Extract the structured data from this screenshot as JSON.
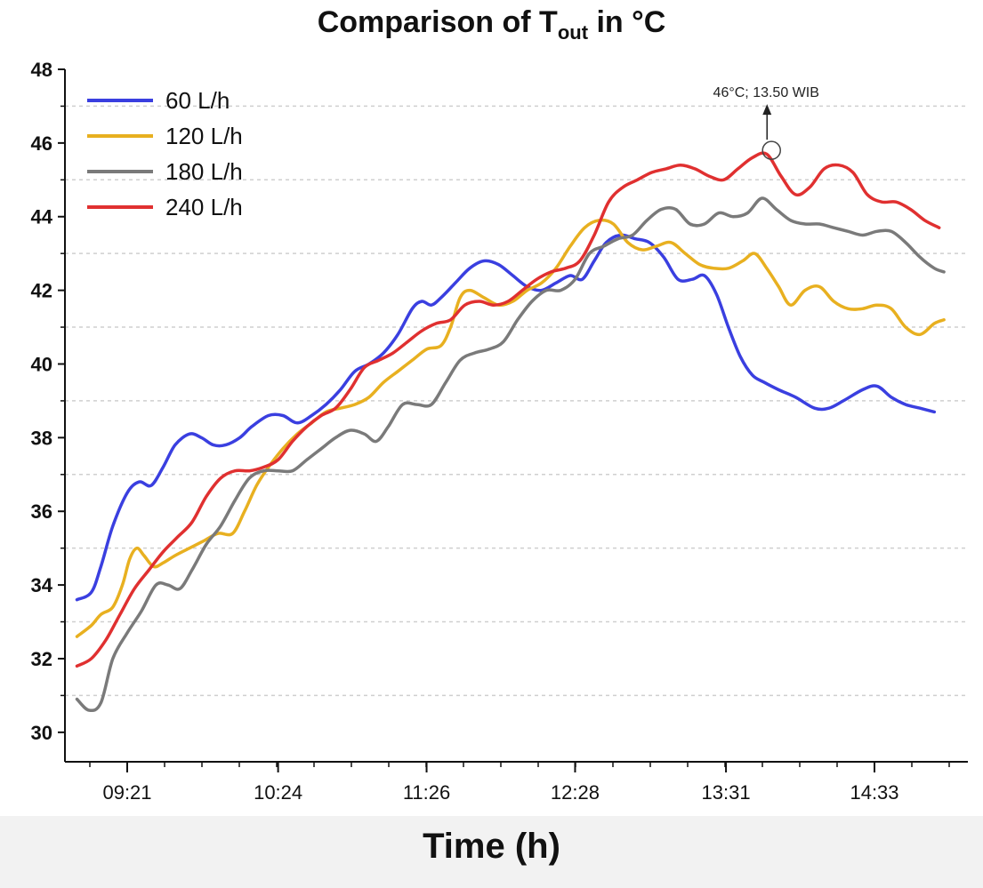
{
  "chart_data": {
    "type": "line",
    "title_main": "Comparison of T",
    "title_sub": "out",
    "title_unit": " in °C",
    "xlabel": "Time (h)",
    "ylabel": "",
    "ylim": [
      29.2,
      48
    ],
    "yticks": [
      30,
      32,
      34,
      36,
      38,
      40,
      42,
      44,
      46,
      48
    ],
    "xlim": [
      "08:55",
      "15:12"
    ],
    "xticks": [
      "09:21",
      "10:24",
      "11:26",
      "12:28",
      "13:31",
      "14:33"
    ],
    "grid": "dotted horizontal",
    "legend_position": "top-left",
    "series": [
      {
        "name": "60 L/h",
        "color": "#3a3fe0",
        "points": [
          [
            "09:00",
            33.6
          ],
          [
            "09:06",
            33.8
          ],
          [
            "09:10",
            34.5
          ],
          [
            "09:15",
            35.6
          ],
          [
            "09:21",
            36.5
          ],
          [
            "09:26",
            36.8
          ],
          [
            "09:31",
            36.7
          ],
          [
            "09:36",
            37.2
          ],
          [
            "09:41",
            37.8
          ],
          [
            "09:47",
            38.1
          ],
          [
            "09:52",
            38.0
          ],
          [
            "09:57",
            37.8
          ],
          [
            "10:02",
            37.8
          ],
          [
            "10:08",
            38.0
          ],
          [
            "10:13",
            38.3
          ],
          [
            "10:20",
            38.6
          ],
          [
            "10:26",
            38.6
          ],
          [
            "10:32",
            38.4
          ],
          [
            "10:38",
            38.6
          ],
          [
            "10:44",
            38.9
          ],
          [
            "10:50",
            39.3
          ],
          [
            "10:56",
            39.8
          ],
          [
            "11:02",
            40.0
          ],
          [
            "11:08",
            40.3
          ],
          [
            "11:14",
            40.8
          ],
          [
            "11:20",
            41.5
          ],
          [
            "11:24",
            41.7
          ],
          [
            "11:28",
            41.6
          ],
          [
            "11:32",
            41.8
          ],
          [
            "11:38",
            42.2
          ],
          [
            "11:44",
            42.6
          ],
          [
            "11:50",
            42.8
          ],
          [
            "11:56",
            42.7
          ],
          [
            "12:02",
            42.4
          ],
          [
            "12:08",
            42.1
          ],
          [
            "12:14",
            42.0
          ],
          [
            "12:20",
            42.2
          ],
          [
            "12:26",
            42.4
          ],
          [
            "12:31",
            42.3
          ],
          [
            "12:36",
            42.8
          ],
          [
            "12:41",
            43.3
          ],
          [
            "12:47",
            43.5
          ],
          [
            "12:53",
            43.4
          ],
          [
            "12:59",
            43.3
          ],
          [
            "13:05",
            42.9
          ],
          [
            "13:11",
            42.3
          ],
          [
            "13:17",
            42.3
          ],
          [
            "13:22",
            42.4
          ],
          [
            "13:27",
            41.9
          ],
          [
            "13:32",
            41.0
          ],
          [
            "13:37",
            40.2
          ],
          [
            "13:42",
            39.7
          ],
          [
            "13:47",
            39.5
          ],
          [
            "13:53",
            39.3
          ],
          [
            "14:00",
            39.1
          ],
          [
            "14:08",
            38.8
          ],
          [
            "14:14",
            38.8
          ],
          [
            "14:20",
            39.0
          ],
          [
            "14:28",
            39.3
          ],
          [
            "14:34",
            39.4
          ],
          [
            "14:40",
            39.1
          ],
          [
            "14:46",
            38.9
          ],
          [
            "14:52",
            38.8
          ],
          [
            "14:58",
            38.7
          ]
        ]
      },
      {
        "name": "120 L/h",
        "color": "#e8b020",
        "points": [
          [
            "09:00",
            32.6
          ],
          [
            "09:06",
            32.9
          ],
          [
            "09:10",
            33.2
          ],
          [
            "09:15",
            33.4
          ],
          [
            "09:19",
            34.0
          ],
          [
            "09:22",
            34.7
          ],
          [
            "09:25",
            35.0
          ],
          [
            "09:28",
            34.8
          ],
          [
            "09:32",
            34.5
          ],
          [
            "09:36",
            34.6
          ],
          [
            "09:41",
            34.8
          ],
          [
            "09:47",
            35.0
          ],
          [
            "09:53",
            35.2
          ],
          [
            "09:59",
            35.4
          ],
          [
            "10:05",
            35.4
          ],
          [
            "10:10",
            36.0
          ],
          [
            "10:15",
            36.7
          ],
          [
            "10:20",
            37.2
          ],
          [
            "10:26",
            37.7
          ],
          [
            "10:32",
            38.1
          ],
          [
            "10:38",
            38.4
          ],
          [
            "10:44",
            38.7
          ],
          [
            "10:50",
            38.8
          ],
          [
            "10:56",
            38.9
          ],
          [
            "11:02",
            39.1
          ],
          [
            "11:08",
            39.5
          ],
          [
            "11:14",
            39.8
          ],
          [
            "11:20",
            40.1
          ],
          [
            "11:26",
            40.4
          ],
          [
            "11:32",
            40.5
          ],
          [
            "11:36",
            41.0
          ],
          [
            "11:40",
            41.8
          ],
          [
            "11:44",
            42.0
          ],
          [
            "11:50",
            41.8
          ],
          [
            "11:56",
            41.6
          ],
          [
            "12:02",
            41.7
          ],
          [
            "12:08",
            42.0
          ],
          [
            "12:14",
            42.2
          ],
          [
            "12:20",
            42.6
          ],
          [
            "12:26",
            43.2
          ],
          [
            "12:32",
            43.7
          ],
          [
            "12:38",
            43.9
          ],
          [
            "12:44",
            43.8
          ],
          [
            "12:50",
            43.3
          ],
          [
            "12:56",
            43.1
          ],
          [
            "13:02",
            43.2
          ],
          [
            "13:08",
            43.3
          ],
          [
            "13:14",
            43.0
          ],
          [
            "13:20",
            42.7
          ],
          [
            "13:26",
            42.6
          ],
          [
            "13:32",
            42.6
          ],
          [
            "13:38",
            42.8
          ],
          [
            "13:43",
            43.0
          ],
          [
            "13:48",
            42.6
          ],
          [
            "13:53",
            42.1
          ],
          [
            "13:58",
            41.6
          ],
          [
            "14:04",
            42.0
          ],
          [
            "14:10",
            42.1
          ],
          [
            "14:16",
            41.7
          ],
          [
            "14:22",
            41.5
          ],
          [
            "14:28",
            41.5
          ],
          [
            "14:34",
            41.6
          ],
          [
            "14:40",
            41.5
          ],
          [
            "14:46",
            41.0
          ],
          [
            "14:52",
            40.8
          ],
          [
            "14:58",
            41.1
          ],
          [
            "15:02",
            41.2
          ]
        ]
      },
      {
        "name": "180 L/h",
        "color": "#7a7a7a",
        "points": [
          [
            "09:00",
            30.9
          ],
          [
            "09:05",
            30.6
          ],
          [
            "09:10",
            30.8
          ],
          [
            "09:15",
            32.0
          ],
          [
            "09:21",
            32.7
          ],
          [
            "09:27",
            33.3
          ],
          [
            "09:33",
            34.0
          ],
          [
            "09:38",
            34.0
          ],
          [
            "09:43",
            33.9
          ],
          [
            "09:48",
            34.4
          ],
          [
            "09:54",
            35.1
          ],
          [
            "10:00",
            35.6
          ],
          [
            "10:06",
            36.3
          ],
          [
            "10:12",
            36.9
          ],
          [
            "10:18",
            37.1
          ],
          [
            "10:24",
            37.1
          ],
          [
            "10:30",
            37.1
          ],
          [
            "10:36",
            37.4
          ],
          [
            "10:42",
            37.7
          ],
          [
            "10:48",
            38.0
          ],
          [
            "10:54",
            38.2
          ],
          [
            "11:00",
            38.1
          ],
          [
            "11:05",
            37.9
          ],
          [
            "11:10",
            38.3
          ],
          [
            "11:16",
            38.9
          ],
          [
            "11:22",
            38.9
          ],
          [
            "11:28",
            38.9
          ],
          [
            "11:34",
            39.5
          ],
          [
            "11:40",
            40.1
          ],
          [
            "11:46",
            40.3
          ],
          [
            "11:52",
            40.4
          ],
          [
            "11:58",
            40.6
          ],
          [
            "12:04",
            41.2
          ],
          [
            "12:10",
            41.7
          ],
          [
            "12:16",
            42.0
          ],
          [
            "12:22",
            42.0
          ],
          [
            "12:28",
            42.3
          ],
          [
            "12:34",
            43.0
          ],
          [
            "12:40",
            43.2
          ],
          [
            "12:46",
            43.4
          ],
          [
            "12:52",
            43.5
          ],
          [
            "12:58",
            43.9
          ],
          [
            "13:04",
            44.2
          ],
          [
            "13:10",
            44.2
          ],
          [
            "13:16",
            43.8
          ],
          [
            "13:22",
            43.8
          ],
          [
            "13:28",
            44.1
          ],
          [
            "13:34",
            44.0
          ],
          [
            "13:40",
            44.1
          ],
          [
            "13:46",
            44.5
          ],
          [
            "13:52",
            44.2
          ],
          [
            "13:58",
            43.9
          ],
          [
            "14:04",
            43.8
          ],
          [
            "14:10",
            43.8
          ],
          [
            "14:16",
            43.7
          ],
          [
            "14:22",
            43.6
          ],
          [
            "14:28",
            43.5
          ],
          [
            "14:34",
            43.6
          ],
          [
            "14:40",
            43.6
          ],
          [
            "14:46",
            43.3
          ],
          [
            "14:52",
            42.9
          ],
          [
            "14:58",
            42.6
          ],
          [
            "15:02",
            42.5
          ]
        ]
      },
      {
        "name": "240 L/h",
        "color": "#e03030",
        "points": [
          [
            "09:00",
            31.8
          ],
          [
            "09:06",
            32.0
          ],
          [
            "09:12",
            32.5
          ],
          [
            "09:18",
            33.2
          ],
          [
            "09:24",
            33.9
          ],
          [
            "09:30",
            34.4
          ],
          [
            "09:36",
            34.9
          ],
          [
            "09:42",
            35.3
          ],
          [
            "09:48",
            35.7
          ],
          [
            "09:54",
            36.4
          ],
          [
            "10:00",
            36.9
          ],
          [
            "10:06",
            37.1
          ],
          [
            "10:12",
            37.1
          ],
          [
            "10:18",
            37.2
          ],
          [
            "10:24",
            37.4
          ],
          [
            "10:30",
            37.9
          ],
          [
            "10:36",
            38.3
          ],
          [
            "10:42",
            38.6
          ],
          [
            "10:48",
            38.8
          ],
          [
            "10:54",
            39.3
          ],
          [
            "11:00",
            39.9
          ],
          [
            "11:06",
            40.1
          ],
          [
            "11:12",
            40.3
          ],
          [
            "11:18",
            40.6
          ],
          [
            "11:24",
            40.9
          ],
          [
            "11:30",
            41.1
          ],
          [
            "11:36",
            41.2
          ],
          [
            "11:42",
            41.6
          ],
          [
            "11:48",
            41.7
          ],
          [
            "11:54",
            41.6
          ],
          [
            "12:00",
            41.7
          ],
          [
            "12:06",
            42.0
          ],
          [
            "12:12",
            42.3
          ],
          [
            "12:18",
            42.5
          ],
          [
            "12:24",
            42.6
          ],
          [
            "12:30",
            42.8
          ],
          [
            "12:36",
            43.5
          ],
          [
            "12:42",
            44.4
          ],
          [
            "12:48",
            44.8
          ],
          [
            "12:54",
            45.0
          ],
          [
            "13:00",
            45.2
          ],
          [
            "13:06",
            45.3
          ],
          [
            "13:12",
            45.4
          ],
          [
            "13:18",
            45.3
          ],
          [
            "13:24",
            45.1
          ],
          [
            "13:30",
            45.0
          ],
          [
            "13:36",
            45.3
          ],
          [
            "13:42",
            45.6
          ],
          [
            "13:48",
            45.7
          ],
          [
            "13:54",
            45.1
          ],
          [
            "14:00",
            44.6
          ],
          [
            "14:06",
            44.8
          ],
          [
            "14:12",
            45.3
          ],
          [
            "14:18",
            45.4
          ],
          [
            "14:24",
            45.2
          ],
          [
            "14:30",
            44.6
          ],
          [
            "14:36",
            44.4
          ],
          [
            "14:42",
            44.4
          ],
          [
            "14:48",
            44.2
          ],
          [
            "14:54",
            43.9
          ],
          [
            "15:00",
            43.7
          ]
        ]
      }
    ],
    "annotation": {
      "text": "46°C; 13.50 WIB",
      "x": "13:50",
      "y": 45.8
    }
  }
}
